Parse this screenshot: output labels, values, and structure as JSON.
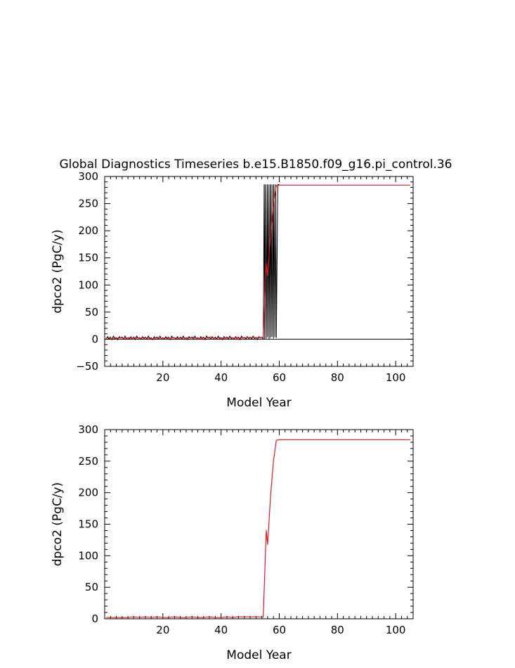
{
  "figure_title": "Global Diagnostics Timeseries b.e15.B1850.f09_g16.pi_control.36",
  "colors": {
    "ann": "#e8141c",
    "mon": "#000000",
    "axes": "#000000"
  },
  "chart_data": [
    {
      "type": "line",
      "title": "Global Diagnostics Timeseries b.e15.B1850.f09_g16.pi_control.36",
      "xlabel": "Model Year",
      "ylabel": "dpco2 (PgC/y)",
      "xlim": [
        0,
        106
      ],
      "ylim": [
        -50,
        300
      ],
      "xticks": [
        20,
        40,
        60,
        80,
        100
      ],
      "xtick_labels": [
        "20",
        "40",
        "60",
        "80",
        "100"
      ],
      "yticks": [
        -50,
        0,
        50,
        100,
        150,
        200,
        250,
        300
      ],
      "ytick_labels": [
        "−50",
        "0",
        "50",
        "100",
        "150",
        "200",
        "250",
        "300"
      ],
      "zero_line": true,
      "grid": false,
      "series": [
        {
          "kind": "monthly",
          "color": "#000000",
          "x": [
            0.5,
            1.0,
            1.5,
            2.0,
            2.5,
            3.0,
            3.5,
            4.0,
            4.5,
            5.0,
            5.5,
            6.0,
            6.5,
            7.0,
            7.5,
            8.0,
            8.5,
            9.0,
            9.5,
            10.0,
            10.5,
            11.0,
            11.5,
            12.0,
            12.5,
            13.0,
            13.5,
            14.0,
            14.5,
            15.0,
            15.5,
            16.0,
            16.5,
            17.0,
            17.5,
            18.0,
            18.5,
            19.0,
            19.5,
            20.0,
            20.5,
            21.0,
            21.5,
            22.0,
            22.5,
            23.0,
            23.5,
            24.0,
            24.5,
            25.0,
            25.5,
            26.0,
            26.5,
            27.0,
            27.5,
            28.0,
            28.5,
            29.0,
            29.5,
            30.0,
            30.5,
            31.0,
            31.5,
            32.0,
            32.5,
            33.0,
            33.5,
            34.0,
            34.5,
            35.0,
            35.5,
            36.0,
            36.5,
            37.0,
            37.5,
            38.0,
            38.5,
            39.0,
            39.5,
            40.0,
            40.5,
            41.0,
            41.5,
            42.0,
            42.5,
            43.0,
            43.5,
            44.0,
            44.5,
            45.0,
            45.5,
            46.0,
            46.5,
            47.0,
            47.5,
            48.0,
            48.5,
            49.0,
            49.5,
            50.0,
            50.5,
            51.0,
            51.5,
            52.0,
            52.5,
            53.0,
            53.5,
            54.0,
            54.5,
            54.8,
            55.0,
            55.2,
            55.5,
            55.8,
            56.0,
            56.2,
            56.5,
            56.8,
            57.0,
            57.2,
            57.5,
            57.8,
            58.0,
            58.2,
            58.5,
            58.8,
            59.0,
            59.5,
            60.0
          ],
          "y": [
            1,
            5,
            0,
            4,
            -1,
            6,
            1,
            3,
            -1,
            5,
            2,
            4,
            0,
            6,
            1,
            3,
            0,
            5,
            1,
            4,
            -1,
            6,
            2,
            3,
            0,
            5,
            1,
            4,
            0,
            6,
            1,
            3,
            -1,
            5,
            2,
            4,
            0,
            6,
            1,
            3,
            0,
            5,
            1,
            4,
            -1,
            6,
            2,
            3,
            0,
            5,
            1,
            4,
            0,
            6,
            1,
            3,
            -1,
            5,
            2,
            4,
            0,
            6,
            1,
            3,
            0,
            5,
            1,
            4,
            -1,
            6,
            2,
            3,
            0,
            5,
            1,
            4,
            0,
            6,
            1,
            3,
            -1,
            5,
            2,
            4,
            0,
            6,
            1,
            3,
            0,
            5,
            1,
            4,
            -1,
            6,
            2,
            3,
            0,
            5,
            1,
            4,
            0,
            6,
            1,
            3,
            -1,
            5,
            2,
            4,
            0,
            285,
            0,
            285,
            2,
            285,
            4,
            285,
            1,
            285,
            3,
            285,
            5,
            285,
            2,
            285,
            4,
            285,
            3,
            285,
            285
          ]
        },
        {
          "kind": "annual",
          "color": "#e8141c",
          "x": [
            0.5,
            1.5,
            2.5,
            3.5,
            4.5,
            5.5,
            6.5,
            7.5,
            8.5,
            9.5,
            10.5,
            11.5,
            12.5,
            13.5,
            14.5,
            15.5,
            16.5,
            17.5,
            18.5,
            19.5,
            20.5,
            21.5,
            22.5,
            23.5,
            24.5,
            25.5,
            26.5,
            27.5,
            28.5,
            29.5,
            30.5,
            31.5,
            32.5,
            33.5,
            34.5,
            35.5,
            36.5,
            37.5,
            38.5,
            39.5,
            40.5,
            41.5,
            42.5,
            43.5,
            44.5,
            45.5,
            46.5,
            47.5,
            48.5,
            49.5,
            50.5,
            51.5,
            52.5,
            53.5,
            54.5,
            55.5,
            56.0,
            57.0,
            58.0,
            59.0,
            60.0,
            65,
            70,
            75,
            80,
            85,
            90,
            95,
            100,
            105
          ],
          "y": [
            2,
            3,
            1,
            3,
            2,
            3,
            2,
            2,
            3,
            1,
            3,
            2,
            2,
            3,
            2,
            3,
            1,
            2,
            3,
            2,
            2,
            3,
            1,
            3,
            2,
            2,
            3,
            2,
            3,
            2,
            4,
            2,
            1,
            3,
            2,
            3,
            4,
            2,
            2,
            3,
            2,
            2,
            3,
            3,
            2,
            3,
            2,
            3,
            3,
            3,
            3,
            3,
            3,
            3,
            3,
            140,
            118,
            195,
            250,
            283,
            284,
            284,
            284,
            284,
            284,
            284,
            284,
            284,
            284,
            284
          ]
        }
      ]
    },
    {
      "type": "line",
      "xlabel": "Model Year",
      "ylabel": "dpco2 (PgC/y)",
      "xlim": [
        0,
        106
      ],
      "ylim": [
        0,
        300
      ],
      "xticks": [
        20,
        40,
        60,
        80,
        100
      ],
      "xtick_labels": [
        "20",
        "40",
        "60",
        "80",
        "100"
      ],
      "yticks": [
        0,
        50,
        100,
        150,
        200,
        250,
        300
      ],
      "ytick_labels": [
        "0",
        "50",
        "100",
        "150",
        "200",
        "250",
        "300"
      ],
      "zero_line": false,
      "grid": false,
      "series": [
        {
          "kind": "annual",
          "color": "#e8141c",
          "x": [
            0.5,
            2,
            4,
            6,
            8,
            10,
            12,
            14,
            16,
            18,
            20,
            22,
            24,
            26,
            28,
            30,
            32,
            34,
            36,
            38,
            40,
            42,
            44,
            46,
            48,
            50,
            52,
            54.5,
            55.5,
            56.0,
            57.0,
            58.0,
            59.0,
            60.0,
            65,
            70,
            75,
            80,
            85,
            90,
            95,
            100,
            105
          ],
          "y": [
            2,
            2,
            2,
            2,
            2,
            3,
            2,
            3,
            2,
            3,
            2,
            2,
            3,
            2,
            2,
            3,
            2,
            2,
            3,
            2,
            2,
            3,
            2,
            3,
            3,
            3,
            3,
            3,
            140,
            118,
            195,
            250,
            283,
            284,
            284,
            284,
            284,
            284,
            284,
            284,
            284,
            284,
            284
          ]
        }
      ]
    }
  ]
}
